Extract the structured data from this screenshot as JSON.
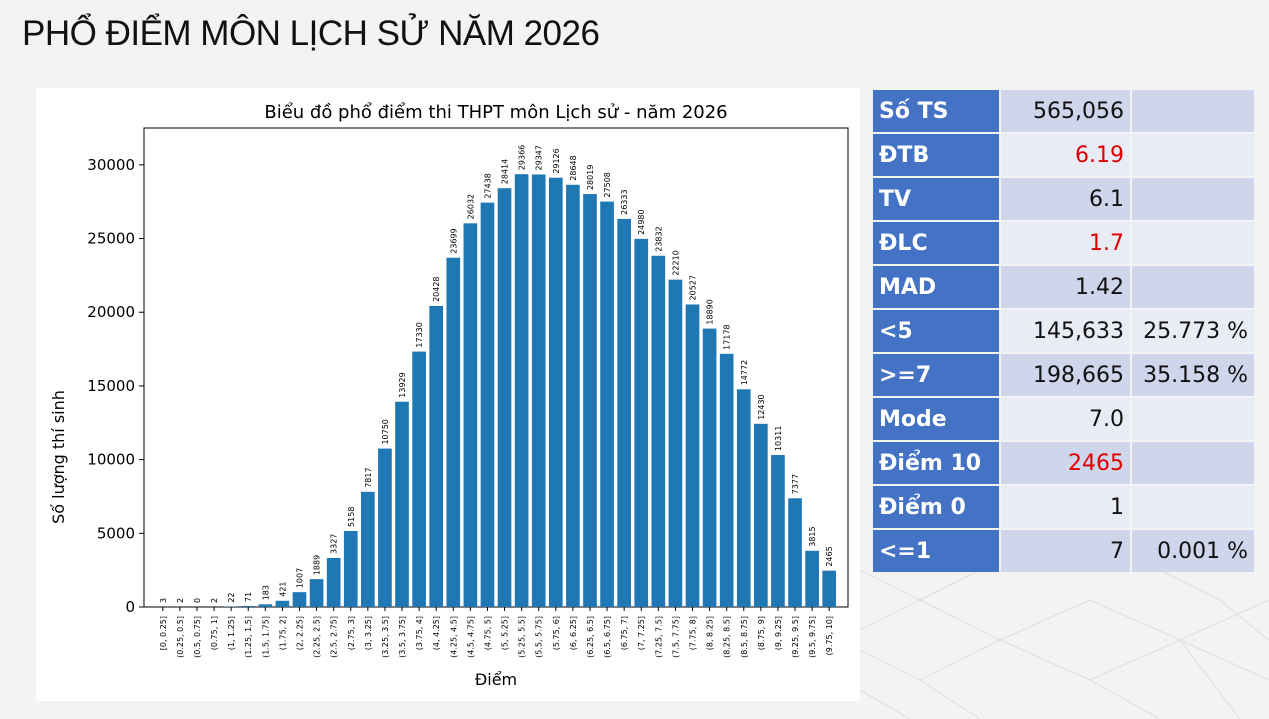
{
  "page": {
    "title": "PHỔ ĐIỂM MÔN LỊCH SỬ NĂM 2026"
  },
  "stats": [
    {
      "label": "Số TS",
      "value": "565,056",
      "extra": "",
      "highlight": false
    },
    {
      "label": "ĐTB",
      "value": "6.19",
      "extra": "",
      "highlight": true
    },
    {
      "label": "TV",
      "value": "6.1",
      "extra": "",
      "highlight": false
    },
    {
      "label": "ĐLC",
      "value": "1.7",
      "extra": "",
      "highlight": true
    },
    {
      "label": "MAD",
      "value": "1.42",
      "extra": "",
      "highlight": false
    },
    {
      "label": "<5",
      "value": "145,633",
      "extra": "25.773 %",
      "highlight": false
    },
    {
      "label": ">=7",
      "value": "198,665",
      "extra": "35.158 %",
      "highlight": false
    },
    {
      "label": "Mode",
      "value": "7.0",
      "extra": "",
      "highlight": false
    },
    {
      "label": "Điểm 10",
      "value": "2465",
      "extra": "",
      "highlight": true
    },
    {
      "label": "Điểm 0",
      "value": "1",
      "extra": "",
      "highlight": false
    },
    {
      "label": "<=1",
      "value": "7",
      "extra": "0.001 %",
      "highlight": false
    }
  ],
  "colors": {
    "bar": "#1f77b4",
    "label_bg": "#4472c4",
    "row_dark": "#cfd5ea",
    "row_light": "#e9ebf5",
    "highlight_text": "#e00000"
  },
  "chart_data": {
    "type": "bar",
    "title": "Biểu đồ phổ điểm thi THPT môn Lịch sử - năm 2026",
    "xlabel": "Điểm",
    "ylabel": "Số lượng thí sinh",
    "ylim": [
      0,
      32500
    ],
    "yticks": [
      0,
      5000,
      10000,
      15000,
      20000,
      25000,
      30000
    ],
    "grid": false,
    "categories": [
      "[0, 0.25]",
      "(0.25, 0.5]",
      "(0.5, 0.75]",
      "(0.75, 1]",
      "(1, 1.25]",
      "(1.25, 1.5]",
      "(1.5, 1.75]",
      "(1.75, 2]",
      "(2, 2.25]",
      "(2.25, 2.5]",
      "(2.5, 2.75]",
      "(2.75, 3]",
      "(3, 3.25]",
      "(3.25, 3.5]",
      "(3.5, 3.75]",
      "(3.75, 4]",
      "(4, 4.25]",
      "(4.25, 4.5]",
      "(4.5, 4.75]",
      "(4.75, 5]",
      "(5, 5.25]",
      "(5.25, 5.5]",
      "(5.5, 5.75]",
      "(5.75, 6]",
      "(6, 6.25]",
      "(6.25, 6.5]",
      "(6.5, 6.75]",
      "(6.75, 7]",
      "(7, 7.25]",
      "(7.25, 7.5]",
      "(7.5, 7.75]",
      "(7.75, 8]",
      "(8, 8.25]",
      "(8.25, 8.5]",
      "(8.5, 8.75]",
      "(8.75, 9]",
      "(9, 9.25]",
      "(9.25, 9.5]",
      "(9.5, 9.75]",
      "(9.75, 10]"
    ],
    "values": [
      3,
      2,
      0,
      2,
      22,
      71,
      183,
      421,
      1007,
      1889,
      3327,
      5158,
      7817,
      10750,
      13929,
      17330,
      20428,
      23699,
      26032,
      27438,
      28414,
      29366,
      29347,
      29126,
      28648,
      28019,
      27508,
      26333,
      24980,
      23832,
      22210,
      20527,
      18890,
      17178,
      14772,
      12430,
      10311,
      7377,
      3815,
      2465
    ]
  }
}
